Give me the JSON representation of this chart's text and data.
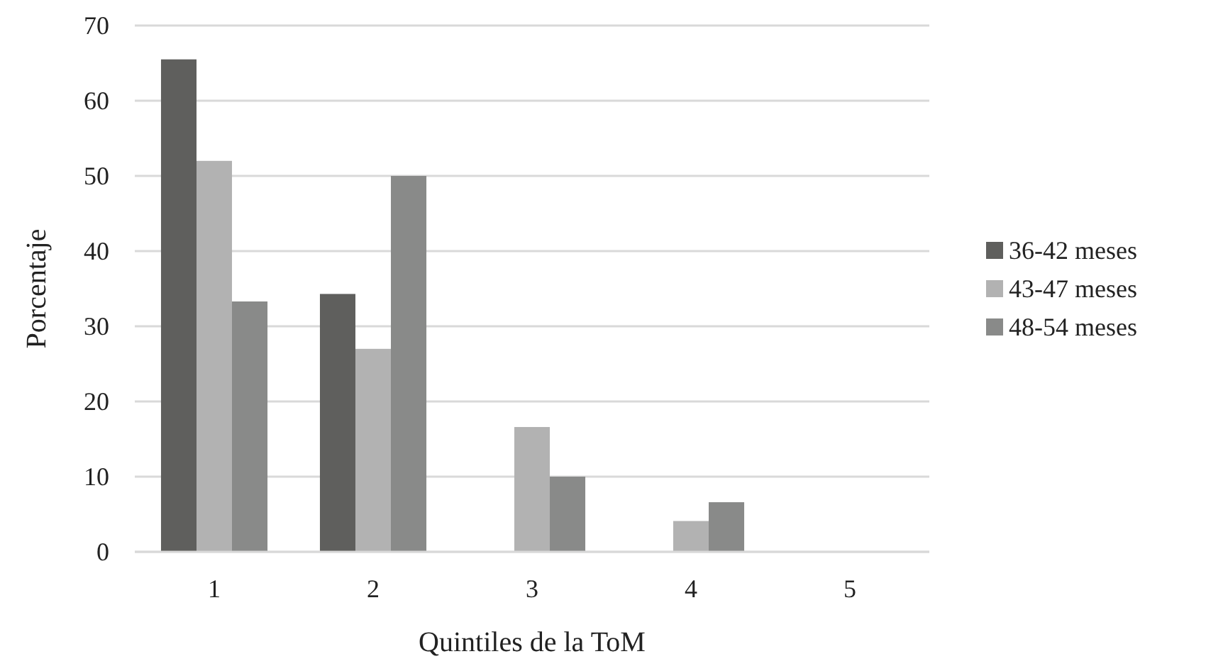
{
  "chart_data": {
    "type": "bar",
    "xlabel": "Quintiles de la ToM",
    "ylabel": "Porcentaje",
    "categories": [
      "1",
      "2",
      "3",
      "4",
      "5"
    ],
    "series": [
      {
        "name": "36-42 meses",
        "color": "#5f5f5d",
        "values": [
          65.5,
          34.3,
          0,
          0,
          0
        ]
      },
      {
        "name": "43-47 meses",
        "color": "#b2b2b2",
        "values": [
          52,
          27,
          16.6,
          4.1,
          0
        ]
      },
      {
        "name": "48-54 meses",
        "color": "#898a89",
        "values": [
          33.3,
          50,
          10,
          6.6,
          0
        ]
      }
    ],
    "ylim": [
      0,
      70
    ],
    "yticks": [
      0,
      10,
      20,
      30,
      40,
      50,
      60,
      70
    ],
    "grid": "y",
    "legend": "right"
  }
}
